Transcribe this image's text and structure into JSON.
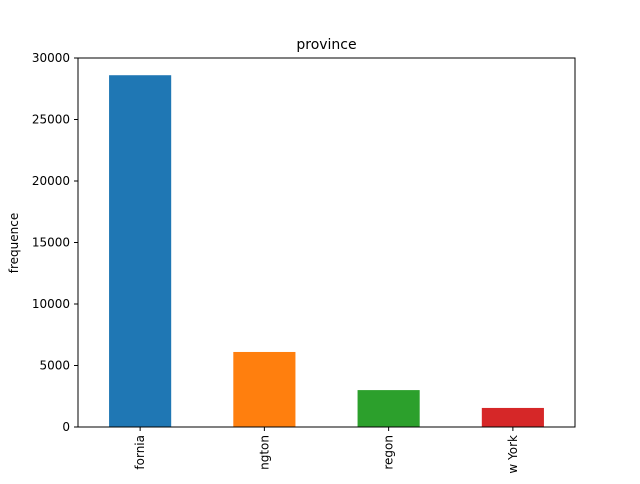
{
  "chart_data": {
    "type": "bar",
    "title": "province",
    "xlabel": "",
    "ylabel": "frequence",
    "categories": [
      "fornia",
      "ngton",
      "regon",
      "w York"
    ],
    "values": [
      28600,
      6100,
      3000,
      1550
    ],
    "ylim": [
      0,
      30000
    ],
    "yticks": [
      0,
      5000,
      10000,
      15000,
      20000,
      25000,
      30000
    ],
    "ytick_labels": [
      "0",
      "5000",
      "10000",
      "15000",
      "20000",
      "25000",
      "30000"
    ],
    "colors": [
      "#1f77b4",
      "#ff7f0e",
      "#2ca02c",
      "#d62728"
    ],
    "grid": false,
    "legend": "none"
  }
}
